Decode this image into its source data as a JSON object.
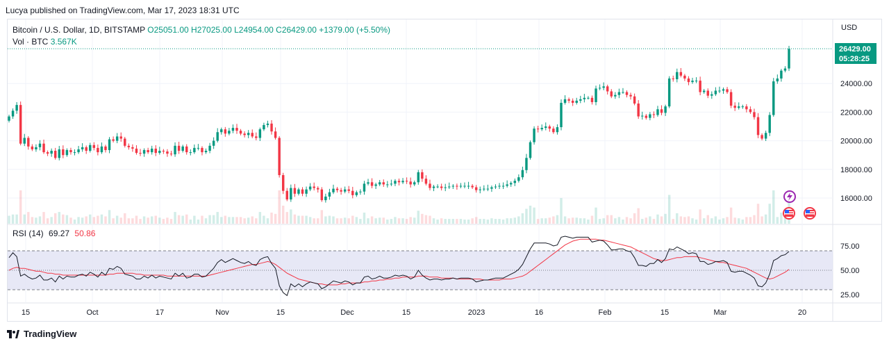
{
  "publisher": "Lucya published on TradingView.com, Mar 17, 2023 18:31 UTC",
  "legend": {
    "symbol": "Bitcoin / U.S. Dollar, 1D, BITSTAMP",
    "open": "O25051.00",
    "high": "H27025.00",
    "low": "L24954.00",
    "close": "C26429.00",
    "change": "+1379.00 (+5.50%)",
    "vol_label": "Vol · BTC",
    "vol_value": "3.567K"
  },
  "rsi_legend": {
    "label": "RSI (14)",
    "value": "69.27",
    "ma_value": "50.86"
  },
  "price_axis": {
    "currency": "USD",
    "last_price": "26429.00",
    "countdown": "05:28:25"
  },
  "footer": {
    "brand": "TradingView"
  },
  "colors": {
    "up": "#089981",
    "down": "#f23645",
    "rsi_line": "#131722",
    "rsi_ma": "#f23645",
    "rsi_band": "#e1e2f4"
  },
  "chart_data": [
    {
      "type": "candlestick",
      "title": "Bitcoin / U.S. Dollar, 1D, BITSTAMP",
      "ylabel": "USD",
      "ylim": [
        14800,
        28500
      ],
      "y_ticks": [
        "16000.00",
        "18000.00",
        "20000.00",
        "22000.00",
        "24000.00"
      ],
      "x_ticks": [
        "15",
        "Oct",
        "17",
        "Nov",
        "15",
        "Dec",
        "15",
        "2023",
        "16",
        "Feb",
        "15",
        "Mar",
        "20"
      ],
      "closes": [
        21700,
        22100,
        22500,
        19800,
        20200,
        19600,
        19400,
        19550,
        19800,
        19200,
        19100,
        19300,
        18800,
        19400,
        19000,
        19350,
        19200,
        19200,
        19400,
        19550,
        19300,
        19700,
        19500,
        19200,
        19600,
        19350,
        20100,
        20000,
        20300,
        20150,
        19650,
        19550,
        19450,
        19150,
        19100,
        19350,
        19200,
        19450,
        19150,
        19300,
        19250,
        19100,
        19050,
        19650,
        19300,
        19600,
        19200,
        19200,
        19500,
        19500,
        19200,
        19300,
        19650,
        20000,
        20600,
        20800,
        20500,
        20700,
        20900,
        20700,
        20500,
        20400,
        20550,
        20300,
        20200,
        20800,
        21100,
        21200,
        20650,
        20200,
        17600,
        16500,
        15900,
        16700,
        16300,
        16600,
        16300,
        16600,
        16800,
        16700,
        16600,
        15850,
        16100,
        16400,
        16650,
        16550,
        16450,
        16600,
        16500,
        16200,
        16400,
        16450,
        17000,
        17100,
        16850,
        16950,
        17100,
        16950,
        16950,
        17000,
        17200,
        17100,
        17200,
        17150,
        16950,
        17100,
        17800,
        17350,
        17000,
        16700,
        16800,
        16800,
        16700,
        16750,
        16800,
        16850,
        16800,
        16850,
        16850,
        16850,
        16750,
        16550,
        16600,
        16650,
        16650,
        16750,
        16800,
        16850,
        16850,
        16950,
        17050,
        17200,
        17450,
        17950,
        18800,
        19900,
        20850,
        20800,
        20900,
        21000,
        20850,
        20600,
        20950,
        22650,
        22900,
        22800,
        22650,
        22800,
        22900,
        23000,
        23000,
        22700,
        23650,
        23700,
        23800,
        23450,
        23100,
        23200,
        23400,
        23400,
        23200,
        23100,
        22600,
        21700,
        21750,
        21600,
        21850,
        21800,
        22200,
        21950,
        22400,
        24350,
        24300,
        24800,
        24550,
        24350,
        24100,
        24200,
        24200,
        23400,
        23500,
        23150,
        23250,
        23500,
        23500,
        23600,
        23400,
        22450,
        22300,
        22400,
        22400,
        22200,
        22000,
        21650,
        20400,
        20150,
        20550,
        21800,
        24150,
        24350,
        24900,
        25050,
        26429
      ]
    },
    {
      "type": "line",
      "title": "RSI (14)",
      "ylim": [
        20,
        92
      ],
      "y_ticks": [
        "25.00",
        "50.00",
        "75.00"
      ],
      "band": [
        30,
        70
      ],
      "series": [
        {
          "name": "RSI (14)",
          "values": [
            63,
            68,
            64,
            44,
            46,
            43,
            41,
            42,
            45,
            40,
            40,
            42,
            38,
            44,
            41,
            44,
            43,
            43,
            45,
            46,
            44,
            48,
            46,
            43,
            48,
            45,
            52,
            51,
            54,
            52,
            46,
            45,
            44,
            41,
            41,
            44,
            42,
            45,
            42,
            44,
            43,
            42,
            41,
            47,
            44,
            47,
            42,
            43,
            46,
            46,
            43,
            44,
            48,
            52,
            58,
            61,
            58,
            60,
            62,
            60,
            58,
            57,
            59,
            56,
            55,
            61,
            63,
            64,
            57,
            52,
            34,
            27,
            24,
            36,
            33,
            36,
            33,
            36,
            38,
            37,
            36,
            31,
            33,
            36,
            39,
            38,
            37,
            39,
            38,
            35,
            37,
            37,
            43,
            44,
            41,
            42,
            44,
            42,
            42,
            43,
            45,
            44,
            45,
            44,
            41,
            43,
            50,
            45,
            42,
            40,
            41,
            41,
            40,
            41,
            41,
            42,
            41,
            42,
            42,
            42,
            41,
            38,
            39,
            40,
            40,
            41,
            42,
            42,
            42,
            44,
            46,
            48,
            51,
            56,
            64,
            72,
            78,
            78,
            78,
            78,
            77,
            75,
            76,
            84,
            85,
            84,
            83,
            84,
            84,
            84,
            84,
            79,
            80,
            81,
            80,
            76,
            71,
            71,
            72,
            72,
            70,
            69,
            63,
            55,
            55,
            54,
            57,
            57,
            61,
            58,
            62,
            72,
            71,
            74,
            72,
            70,
            67,
            68,
            67,
            59,
            59,
            56,
            57,
            59,
            59,
            60,
            58,
            49,
            48,
            49,
            49,
            47,
            45,
            42,
            34,
            33,
            37,
            46,
            60,
            62,
            65,
            66,
            69.27
          ]
        },
        {
          "name": "MA",
          "values": [
            50,
            52,
            53,
            52,
            52,
            51,
            50,
            49,
            49,
            48,
            47,
            47,
            46,
            46,
            45,
            45,
            45,
            45,
            45,
            45,
            45,
            45,
            45,
            45,
            45,
            45,
            46,
            46,
            47,
            47,
            47,
            47,
            47,
            46,
            46,
            45,
            45,
            45,
            45,
            45,
            45,
            44,
            44,
            44,
            44,
            44,
            44,
            44,
            44,
            44,
            44,
            44,
            45,
            46,
            47,
            48,
            49,
            50,
            51,
            52,
            53,
            54,
            55,
            56,
            56,
            57,
            58,
            59,
            58,
            56,
            53,
            50,
            47,
            45,
            43,
            41,
            40,
            39,
            38,
            37,
            36,
            36,
            35,
            35,
            35,
            35,
            36,
            36,
            37,
            37,
            37,
            37,
            38,
            38,
            39,
            39,
            40,
            40,
            41,
            41,
            42,
            42,
            43,
            43,
            43,
            43,
            44,
            44,
            44,
            43,
            43,
            43,
            42,
            42,
            42,
            42,
            41,
            41,
            41,
            41,
            41,
            41,
            41,
            40,
            40,
            40,
            40,
            40,
            41,
            41,
            41,
            42,
            43,
            44,
            46,
            49,
            52,
            55,
            58,
            61,
            64,
            67,
            70,
            73,
            76,
            78,
            80,
            81,
            82,
            82,
            82,
            82,
            82,
            81,
            81,
            80,
            79,
            78,
            77,
            76,
            75,
            74,
            72,
            70,
            68,
            66,
            64,
            62,
            61,
            60,
            60,
            61,
            62,
            63,
            63,
            64,
            64,
            64,
            64,
            63,
            62,
            61,
            60,
            59,
            58,
            58,
            57,
            56,
            55,
            54,
            53,
            52,
            50,
            48,
            46,
            44,
            42,
            41,
            42,
            44,
            46,
            48,
            50.86
          ]
        }
      ]
    }
  ]
}
